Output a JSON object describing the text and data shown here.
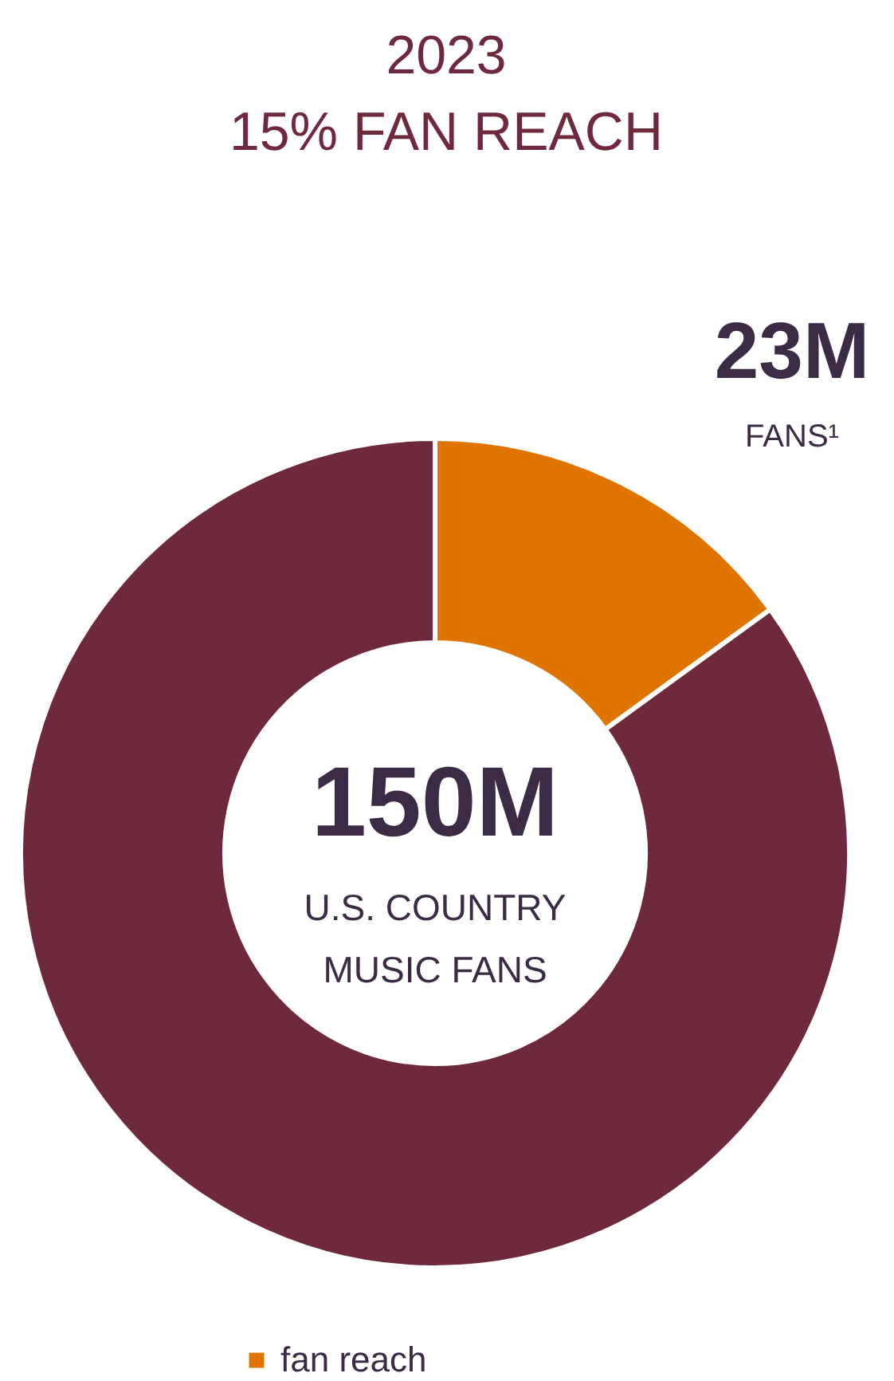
{
  "chart_data": {
    "type": "donut",
    "title": "2023",
    "subtitle": "15% FAN REACH",
    "categories": [
      "fan reach",
      null
    ],
    "values": [
      15,
      85
    ],
    "colors": [
      "#e07400",
      "#6e2a3c"
    ],
    "legend": "bottom",
    "annotations": [
      "23M",
      "FANS¹",
      "150M",
      "U.S. COUNTRY",
      "MUSIC FANS"
    ]
  }
}
